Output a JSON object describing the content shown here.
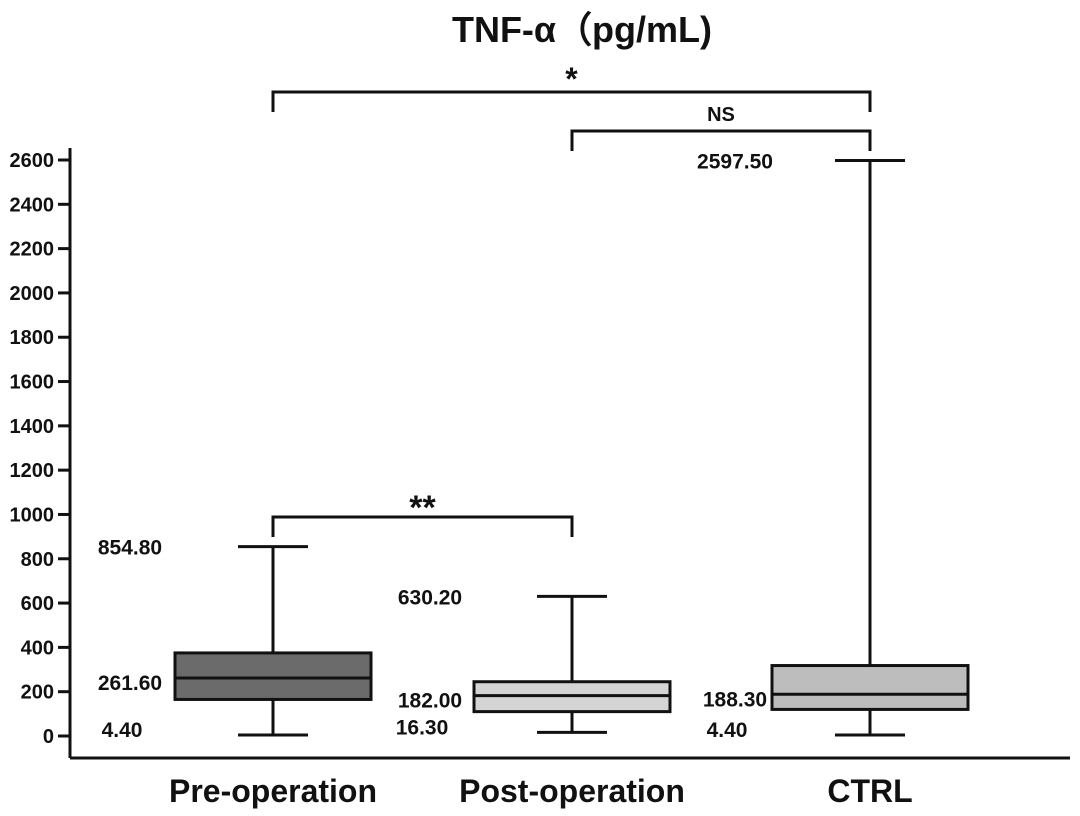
{
  "chart_data": {
    "type": "box",
    "title": "TNF-α（pg/mL)",
    "xlabel": "",
    "ylabel": "",
    "ylim": [
      0,
      2600
    ],
    "yticks": [
      0,
      200,
      400,
      600,
      800,
      1000,
      1200,
      1400,
      1600,
      1800,
      2000,
      2200,
      2400,
      2600
    ],
    "grid": false,
    "categories": [
      "Pre-operation",
      "Post-operation",
      "CTRL"
    ],
    "boxes": [
      {
        "category": "Pre-operation",
        "min": 4.4,
        "q1": 165,
        "median": 261.6,
        "q3": 375,
        "max": 854.8,
        "labels": {
          "max": "854.80",
          "median": "261.60",
          "min": "4.40"
        },
        "color": "#6b6b6b"
      },
      {
        "category": "Post-operation",
        "min": 16.3,
        "q1": 110,
        "median": 182.0,
        "q3": 245,
        "max": 630.2,
        "labels": {
          "max": "630.20",
          "median": "182.00",
          "min": "16.30"
        },
        "color": "#d4d4d4"
      },
      {
        "category": "CTRL",
        "min": 4.4,
        "q1": 120,
        "median": 188.3,
        "q3": 318,
        "max": 2597.5,
        "labels": {
          "max": "2597.50",
          "median": "188.30",
          "min": "4.40"
        },
        "color": "#bdbdbd"
      }
    ],
    "significance": [
      {
        "from": "Pre-operation",
        "to": "CTRL",
        "label": "*"
      },
      {
        "from": "Post-operation",
        "to": "CTRL",
        "label": "NS"
      },
      {
        "from": "Pre-operation",
        "to": "Post-operation",
        "label": "**"
      }
    ]
  }
}
